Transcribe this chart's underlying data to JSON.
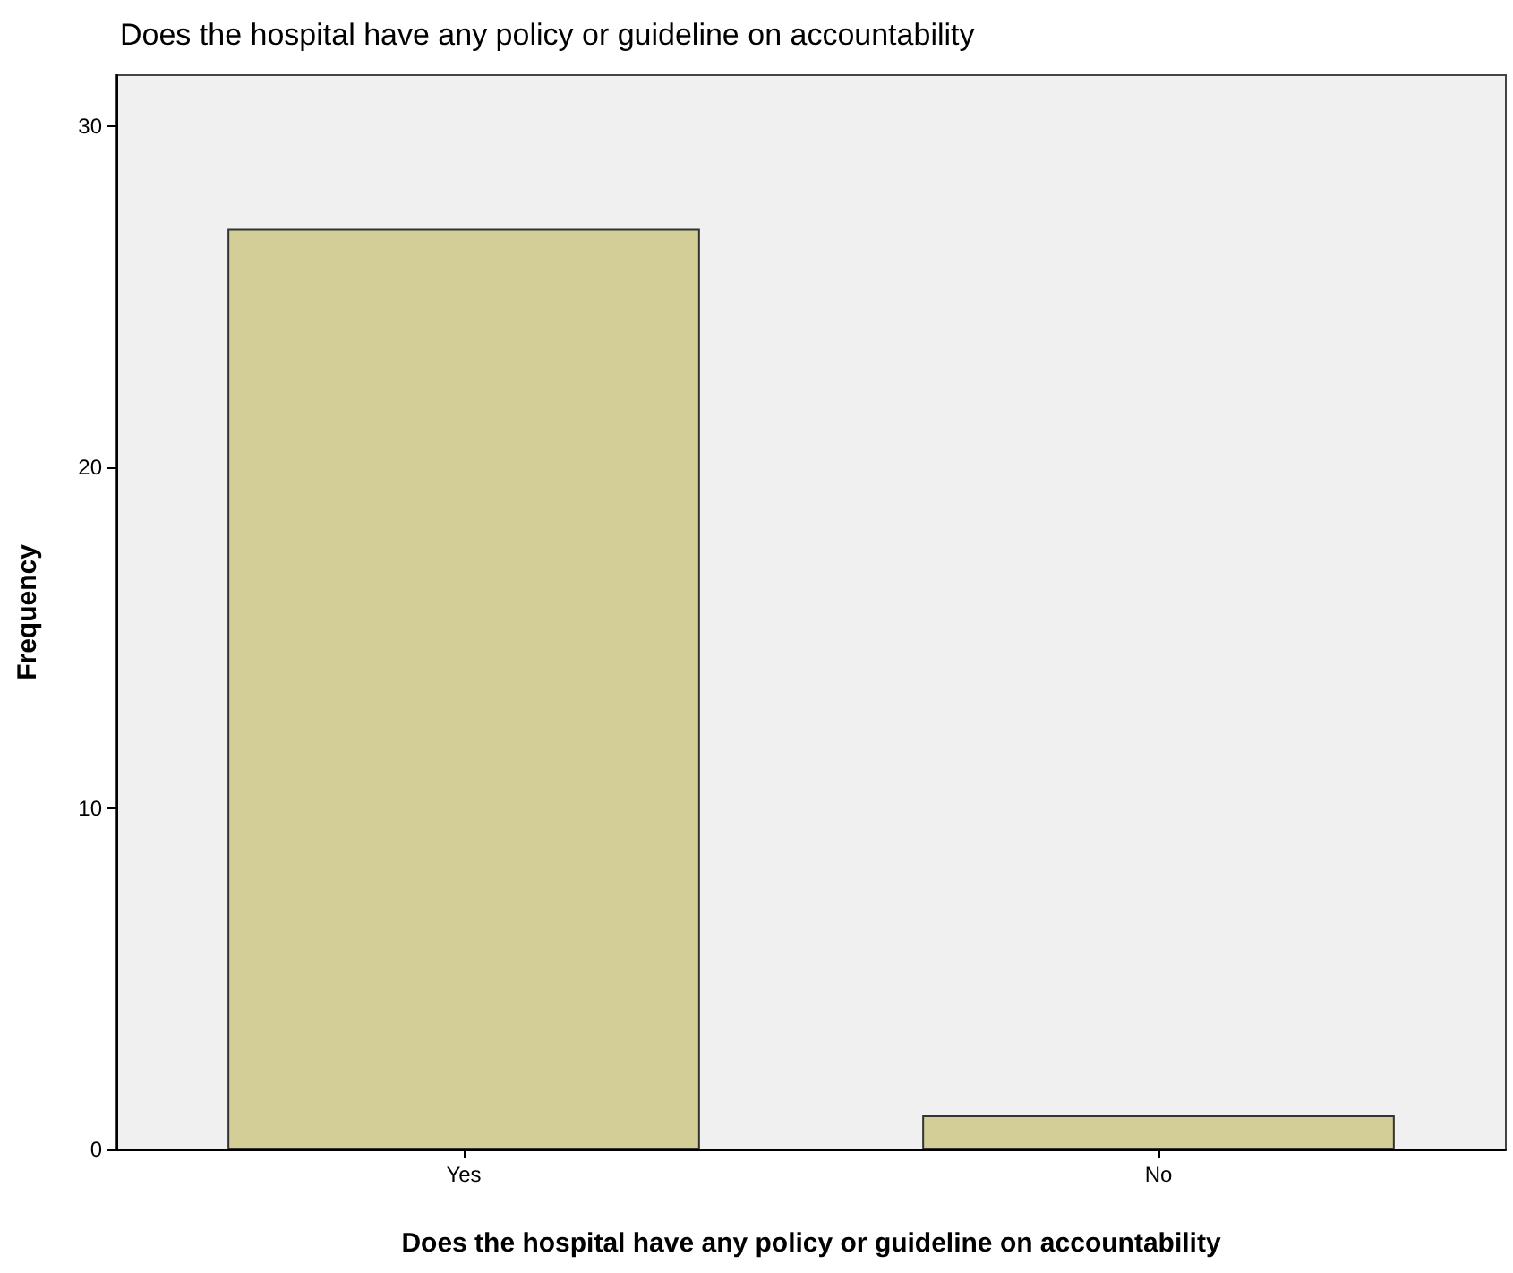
{
  "chart_data": {
    "type": "bar",
    "title": "Does the hospital have any policy or guideline on accountability",
    "xlabel": "Does the hospital have any policy or guideline on accountability",
    "ylabel": "Frequency",
    "categories": [
      "Yes",
      "No"
    ],
    "series": [
      {
        "color": "#d3ce97",
        "values": [
          27,
          1
        ]
      }
    ],
    "ylim": [
      0,
      31.5
    ],
    "yticks": [
      0,
      10,
      20,
      30
    ],
    "grid": false
  }
}
